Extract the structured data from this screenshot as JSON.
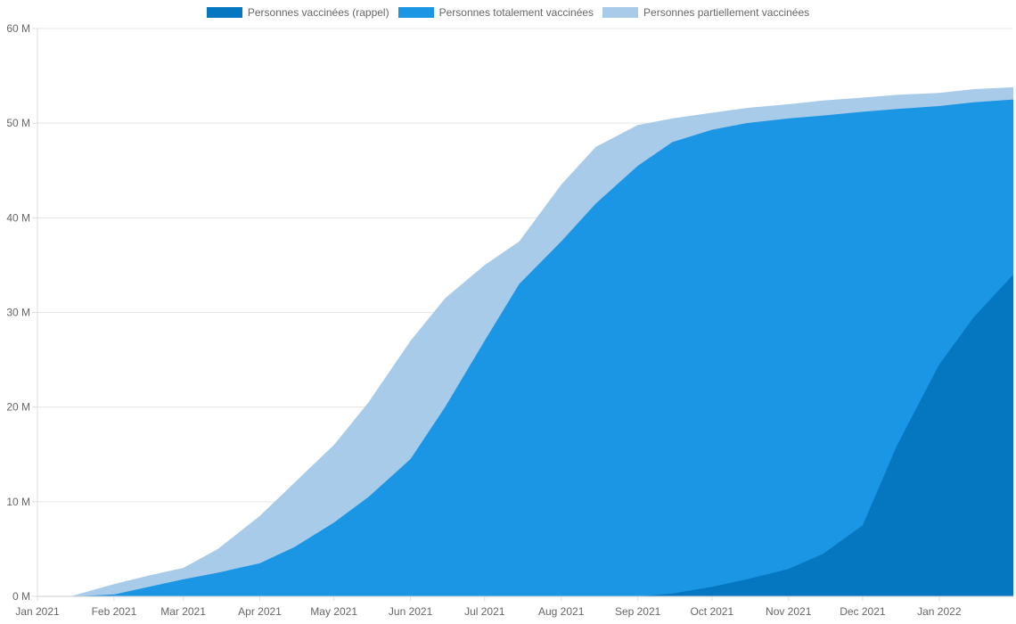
{
  "chart_data": {
    "type": "area",
    "stacked": false,
    "grid": true,
    "legend_position": "top-center",
    "ylim": [
      0,
      60000000
    ],
    "y_ticks": [
      {
        "value": 0,
        "label": "0 M"
      },
      {
        "value": 10000000,
        "label": "10 M"
      },
      {
        "value": 20000000,
        "label": "20 M"
      },
      {
        "value": 30000000,
        "label": "30 M"
      },
      {
        "value": 40000000,
        "label": "40 M"
      },
      {
        "value": 50000000,
        "label": "50 M"
      },
      {
        "value": 60000000,
        "label": "60 M"
      }
    ],
    "x_ticks": [
      {
        "date": "2021-01-01",
        "label": "Jan 2021"
      },
      {
        "date": "2021-02-01",
        "label": "Feb 2021"
      },
      {
        "date": "2021-03-01",
        "label": "Mar 2021"
      },
      {
        "date": "2021-04-01",
        "label": "Apr 2021"
      },
      {
        "date": "2021-05-01",
        "label": "May 2021"
      },
      {
        "date": "2021-06-01",
        "label": "Jun 2021"
      },
      {
        "date": "2021-07-01",
        "label": "Jul 2021"
      },
      {
        "date": "2021-08-01",
        "label": "Aug 2021"
      },
      {
        "date": "2021-09-01",
        "label": "Sep 2021"
      },
      {
        "date": "2021-10-01",
        "label": "Oct 2021"
      },
      {
        "date": "2021-11-01",
        "label": "Nov 2021"
      },
      {
        "date": "2021-12-01",
        "label": "Dec 2021"
      },
      {
        "date": "2022-01-01",
        "label": "Jan 2022"
      }
    ],
    "x_range": [
      "2021-01-01",
      "2022-01-31"
    ],
    "x": [
      "2021-01-01",
      "2021-01-15",
      "2021-02-01",
      "2021-02-15",
      "2021-03-01",
      "2021-03-15",
      "2021-04-01",
      "2021-04-15",
      "2021-05-01",
      "2021-05-15",
      "2021-06-01",
      "2021-06-15",
      "2021-07-01",
      "2021-07-15",
      "2021-08-01",
      "2021-08-15",
      "2021-09-01",
      "2021-09-15",
      "2021-10-01",
      "2021-10-15",
      "2021-11-01",
      "2021-11-15",
      "2021-12-01",
      "2021-12-15",
      "2022-01-01",
      "2022-01-15",
      "2022-01-31"
    ],
    "series": [
      {
        "name": "Personnes partiellement vaccinées",
        "color": "#a7cbe8",
        "values": [
          0,
          50000,
          1300000,
          2200000,
          3000000,
          5000000,
          8500000,
          12000000,
          16000000,
          20500000,
          27000000,
          31500000,
          35000000,
          37500000,
          43500000,
          47500000,
          49800000,
          50500000,
          51100000,
          51600000,
          52000000,
          52400000,
          52700000,
          53000000,
          53200000,
          53600000,
          53800000
        ]
      },
      {
        "name": "Personnes totalement vaccinées",
        "color": "#1a96e4",
        "values": [
          0,
          0,
          200000,
          1000000,
          1800000,
          2500000,
          3500000,
          5200000,
          7800000,
          10500000,
          14500000,
          20000000,
          27000000,
          33000000,
          37500000,
          41500000,
          45500000,
          48000000,
          49300000,
          50000000,
          50500000,
          50800000,
          51200000,
          51500000,
          51800000,
          52200000,
          52500000
        ]
      },
      {
        "name": "Personnes vaccinées (rappel)",
        "color": "#0577c0",
        "values": [
          0,
          0,
          0,
          0,
          0,
          0,
          0,
          0,
          0,
          0,
          0,
          0,
          0,
          0,
          0,
          0,
          0,
          300000,
          1000000,
          1800000,
          2900000,
          4500000,
          7500000,
          16000000,
          24500000,
          29500000,
          34000000
        ]
      }
    ]
  }
}
